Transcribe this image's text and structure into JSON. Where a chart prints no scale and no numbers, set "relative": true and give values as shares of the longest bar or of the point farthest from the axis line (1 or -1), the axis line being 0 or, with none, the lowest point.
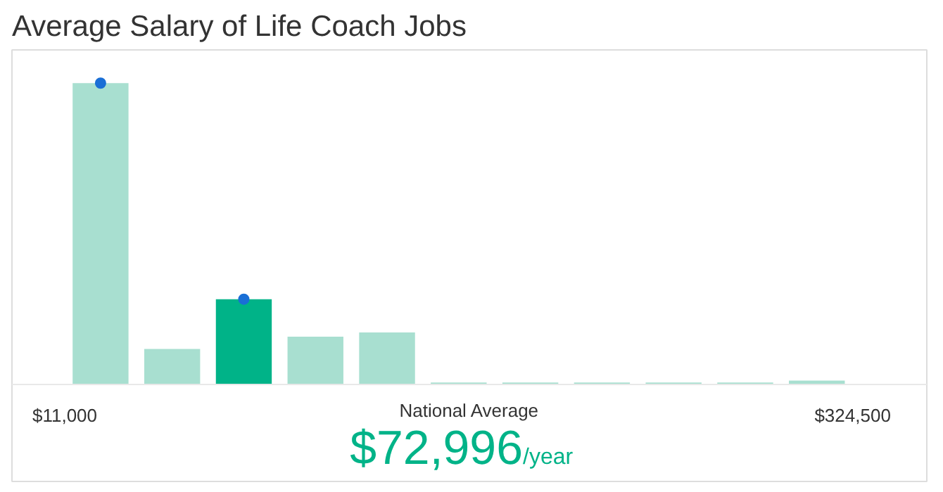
{
  "chart_data": {
    "type": "bar",
    "title": "Average Salary of Life Coach Jobs",
    "relative": true,
    "x": [
      25250,
      53750,
      82250,
      110750,
      139250,
      167750,
      196250,
      224750,
      253250,
      281750,
      310250
    ],
    "values": [
      1,
      0.119,
      0.284,
      0.16,
      0.174,
      0.008,
      0.008,
      0.008,
      0.008,
      0.008,
      0.014
    ],
    "colors": [
      "#a8dfd0",
      "#a8dfd0",
      "#00b388",
      "#a8dfd0",
      "#a8dfd0",
      "#a8dfd0",
      "#a8dfd0",
      "#a8dfd0",
      "#a8dfd0",
      "#a8dfd0",
      "#a8dfd0"
    ],
    "series": [
      {
        "type": "scatter",
        "color": "#1a6fd6",
        "x": [
          25250,
          82250
        ],
        "values": [
          1,
          0.284
        ]
      }
    ],
    "marker": "circle",
    "xlim": [
      -10000,
      354000
    ],
    "xticks": [
      {
        "value": 11000,
        "label": "$11,000"
      },
      {
        "value": 324500,
        "label": "$324,500"
      }
    ],
    "annotations": [
      "National Average",
      "$72,996",
      "/year"
    ],
    "grid": false
  }
}
